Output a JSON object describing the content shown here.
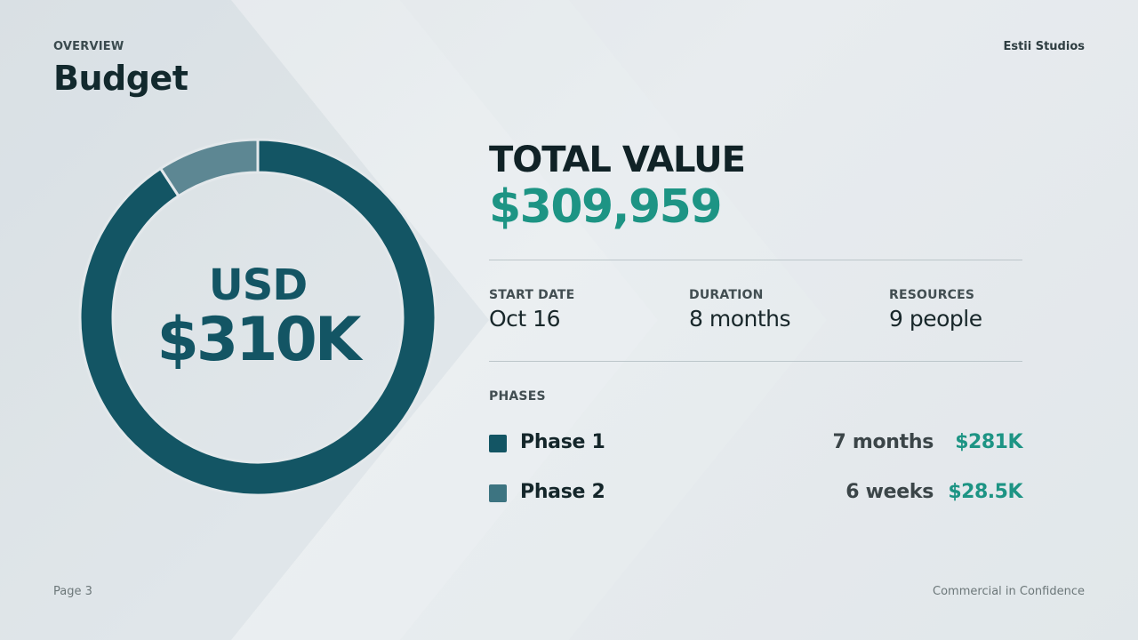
{
  "header": {
    "eyebrow": "OVERVIEW",
    "title": "Budget",
    "brand": "Estii Studios"
  },
  "donut": {
    "currency": "USD",
    "total_short": "$310K"
  },
  "summary": {
    "total_label": "TOTAL VALUE",
    "total_value": "$309,959",
    "stats": [
      {
        "label": "START DATE",
        "value": "Oct 16"
      },
      {
        "label": "DURATION",
        "value": "8 months"
      },
      {
        "label": "RESOURCES",
        "value": "9 people"
      }
    ]
  },
  "phases": {
    "label": "PHASES",
    "items": [
      {
        "name": "Phase 1",
        "duration": "7 months",
        "amount": "$281K",
        "color": "#135564"
      },
      {
        "name": "Phase 2",
        "duration": "6 weeks",
        "amount": "$28.5K",
        "color": "#3d7481"
      }
    ]
  },
  "footer": {
    "page": "Page 3",
    "confidentiality": "Commercial in Confidence"
  },
  "chart_data": {
    "type": "pie",
    "categories": [
      "Phase 1",
      "Phase 2"
    ],
    "values": [
      281,
      28.5
    ],
    "colors": [
      "#135564",
      "#5d8793"
    ]
  }
}
